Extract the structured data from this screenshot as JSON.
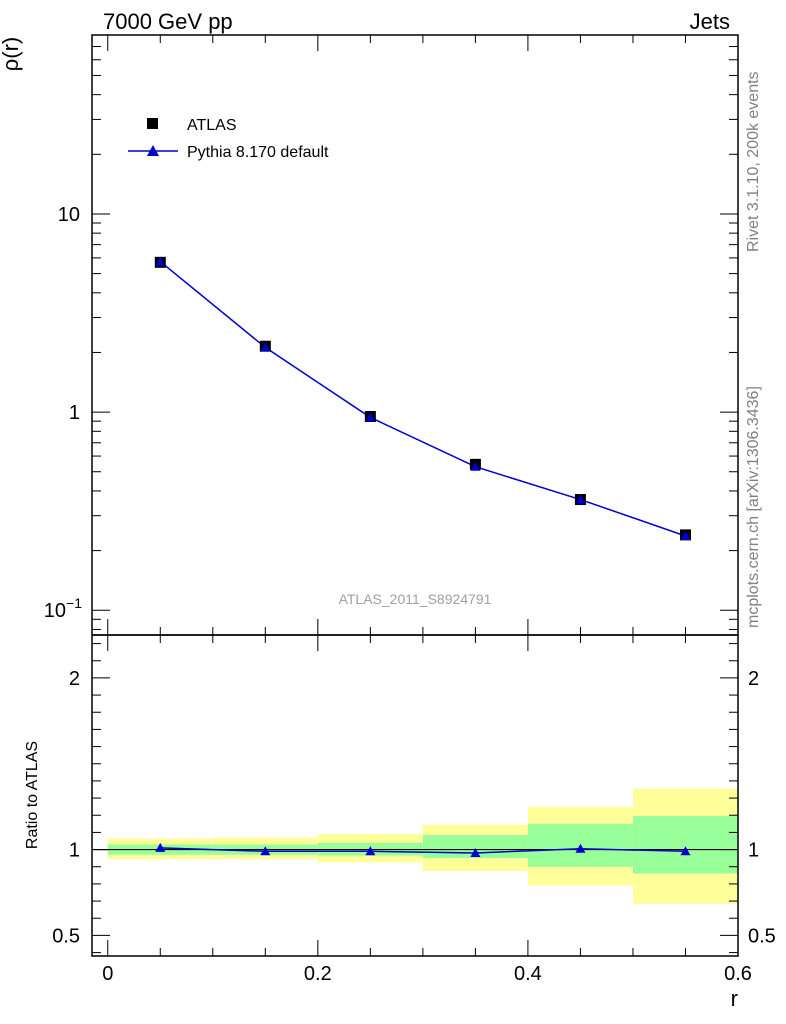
{
  "header": {
    "left": "7000 GeV pp",
    "right": "Jets"
  },
  "side": {
    "rivet": "Rivet 3.1.10,  200k events",
    "mcplots": "mcplots.cern.ch [arXiv:1306.3436]"
  },
  "watermark": "ATLAS_2011_S8924791",
  "chart_data": [
    {
      "type": "scatter",
      "ylabel": "ρ(r)",
      "yscale": "log",
      "ylim": [
        0.075,
        80
      ],
      "xlim": [
        -0.015,
        0.6
      ],
      "y_ticks": [
        {
          "value": 0.1,
          "label": "10",
          "sup": "−1"
        },
        {
          "value": 1,
          "label": "1",
          "sup": ""
        },
        {
          "value": 10,
          "label": "10",
          "sup": ""
        }
      ],
      "x": [
        0.05,
        0.15,
        0.25,
        0.35,
        0.45,
        0.55
      ],
      "series": [
        {
          "name": "ATLAS",
          "marker": "square",
          "color": "#000000",
          "values": [
            5.7,
            2.15,
            0.95,
            0.545,
            0.362,
            0.24
          ]
        },
        {
          "name": "Pythia 8.170 default",
          "marker": "triangle",
          "color": "#0000cc",
          "values": [
            5.75,
            2.12,
            0.94,
            0.53,
            0.362,
            0.237
          ]
        }
      ],
      "legend": "top-left"
    },
    {
      "type": "area",
      "ylabel": "Ratio to ATLAS",
      "xlabel": "r",
      "ylim": [
        0.38,
        2.25
      ],
      "xlim": [
        -0.015,
        0.6
      ],
      "y_ticks": [
        {
          "value": 0.5,
          "label": "0.5"
        },
        {
          "value": 1,
          "label": "1"
        },
        {
          "value": 2,
          "label": "2"
        }
      ],
      "x_ticks": [
        {
          "value": 0,
          "label": "0"
        },
        {
          "value": 0.2,
          "label": "0.2"
        },
        {
          "value": 0.4,
          "label": "0.4"
        },
        {
          "value": 0.6,
          "label": "0.6"
        }
      ],
      "bins": [
        {
          "low": 0.0,
          "high": 0.1,
          "stat_lo": 0.97,
          "stat_hi": 1.03,
          "tot_lo": 0.945,
          "tot_hi": 1.065
        },
        {
          "low": 0.1,
          "high": 0.2,
          "stat_lo": 0.97,
          "stat_hi": 1.03,
          "tot_lo": 0.945,
          "tot_hi": 1.07
        },
        {
          "low": 0.2,
          "high": 0.3,
          "stat_lo": 0.965,
          "stat_hi": 1.04,
          "tot_lo": 0.925,
          "tot_hi": 1.09
        },
        {
          "low": 0.3,
          "high": 0.4,
          "stat_lo": 0.95,
          "stat_hi": 1.085,
          "tot_lo": 0.875,
          "tot_hi": 1.145
        },
        {
          "low": 0.4,
          "high": 0.5,
          "stat_lo": 0.9,
          "stat_hi": 1.15,
          "tot_lo": 0.79,
          "tot_hi": 1.25
        },
        {
          "low": 0.5,
          "high": 0.6,
          "stat_lo": 0.86,
          "stat_hi": 1.195,
          "tot_lo": 0.685,
          "tot_hi": 1.355
        }
      ],
      "series": [
        {
          "name": "Pythia 8.170 default",
          "color": "#0000cc",
          "values": [
            1.01,
            0.99,
            0.99,
            0.98,
            1.005,
            0.99
          ]
        }
      ],
      "band_colors": {
        "stat": "#99ff99",
        "total": "#ffff99"
      }
    }
  ]
}
